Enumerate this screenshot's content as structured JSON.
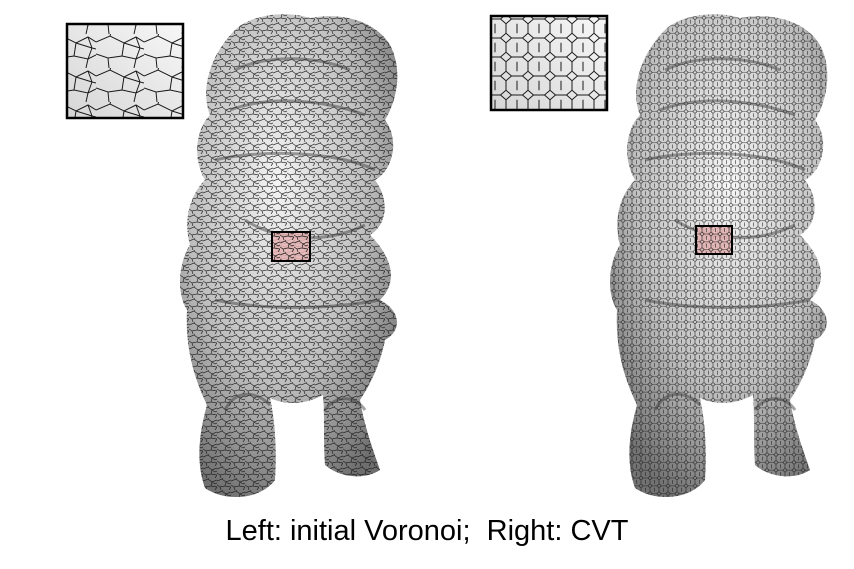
{
  "caption": "Left: initial Voronoi;  Right: CVT",
  "panels": [
    {
      "id": "left",
      "method": "initial Voronoi",
      "mesh_style": "irregular"
    },
    {
      "id": "right",
      "method": "CVT",
      "mesh_style": "regular-hexagonal"
    }
  ],
  "colors": {
    "mesh_line": "#1a1a1a",
    "surface_light": "#f2f2f2",
    "surface_dark": "#8a8a8a",
    "highlight_fill": "#e8b4b4",
    "highlight_stroke": "#000000",
    "caption_text": "#000000"
  }
}
